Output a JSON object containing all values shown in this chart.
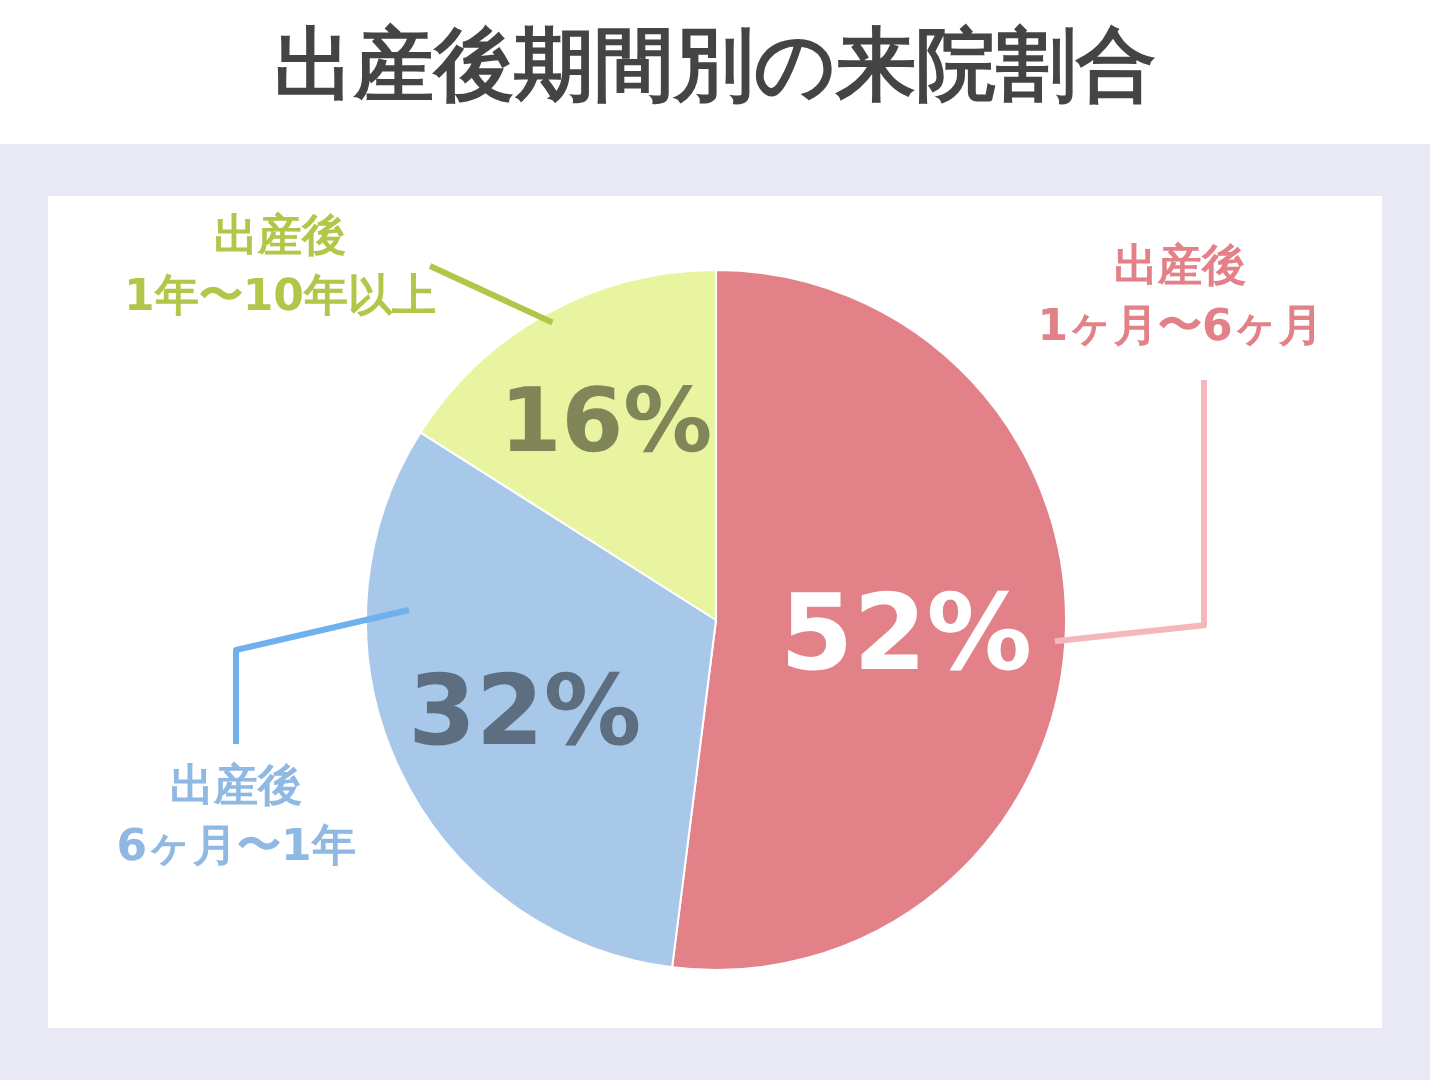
{
  "chart_data": {
    "type": "pie",
    "title": "出産後期間別の来院割合",
    "categories": [
      "出産後 1ヶ月〜6ヶ月",
      "出産後 6ヶ月〜1年",
      "出産後 1年〜10年以上"
    ],
    "values": [
      52,
      32,
      16
    ],
    "colors": [
      "#e38189",
      "#a7c8e8",
      "#e8f4a0"
    ],
    "value_labels": [
      "52%",
      "32%",
      "16%"
    ]
  }
}
